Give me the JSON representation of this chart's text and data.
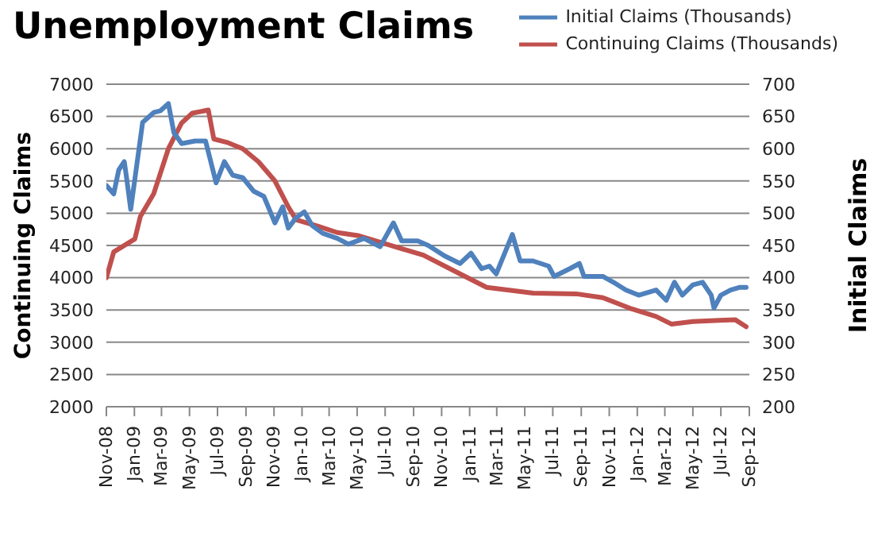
{
  "chart_data": {
    "type": "line",
    "title": "Unemployment Claims",
    "ylabel": "Continuing Claims",
    "y2label": "Initial Claims",
    "xlim": [
      "2008-11-01",
      "2012-09-01"
    ],
    "xticks": [
      {
        "value": "2008-11-01",
        "label": "Nov-08"
      },
      {
        "value": "2009-01-01",
        "label": "Jan-09"
      },
      {
        "value": "2009-03-01",
        "label": "Mar-09"
      },
      {
        "value": "2009-05-01",
        "label": "May-09"
      },
      {
        "value": "2009-07-01",
        "label": "Jul-09"
      },
      {
        "value": "2009-09-01",
        "label": "Sep-09"
      },
      {
        "value": "2009-11-01",
        "label": "Nov-09"
      },
      {
        "value": "2010-01-01",
        "label": "Jan-10"
      },
      {
        "value": "2010-03-01",
        "label": "Mar-10"
      },
      {
        "value": "2010-05-01",
        "label": "May-10"
      },
      {
        "value": "2010-07-01",
        "label": "Jul-10"
      },
      {
        "value": "2010-09-01",
        "label": "Sep-10"
      },
      {
        "value": "2010-11-01",
        "label": "Nov-10"
      },
      {
        "value": "2011-01-01",
        "label": "Jan-11"
      },
      {
        "value": "2011-03-01",
        "label": "Mar-11"
      },
      {
        "value": "2011-05-01",
        "label": "May-11"
      },
      {
        "value": "2011-07-01",
        "label": "Jul-11"
      },
      {
        "value": "2011-09-01",
        "label": "Sep-11"
      },
      {
        "value": "2011-11-01",
        "label": "Nov-11"
      },
      {
        "value": "2012-01-01",
        "label": "Jan-12"
      },
      {
        "value": "2012-03-01",
        "label": "Mar-12"
      },
      {
        "value": "2012-05-01",
        "label": "May-12"
      },
      {
        "value": "2012-07-01",
        "label": "Jul-12"
      },
      {
        "value": "2012-09-01",
        "label": "Sep-12"
      }
    ],
    "ylim": [
      2000,
      7000
    ],
    "yticks": [
      2000,
      2500,
      3000,
      3500,
      4000,
      4500,
      5000,
      5500,
      6000,
      6500,
      7000
    ],
    "y2lim": [
      200,
      700
    ],
    "y2ticks": [
      200,
      250,
      300,
      350,
      400,
      450,
      500,
      550,
      600,
      650,
      700
    ],
    "grid": "y",
    "legend": "top right",
    "marker": "none",
    "line_style": "solid",
    "series": [
      {
        "name": "Initial Claims (Thousands)",
        "color": "#4f81bd",
        "axis": "y2",
        "x": [
          "2008-11-01",
          "2008-11-17",
          "2008-11-28",
          "2008-12-10",
          "2008-12-15",
          "2008-12-24",
          "2009-01-08",
          "2009-01-19",
          "2009-02-12",
          "2009-02-27",
          "2009-03-16",
          "2009-03-28",
          "2009-04-14",
          "2009-05-13",
          "2009-06-05",
          "2009-06-28",
          "2009-07-16",
          "2009-08-03",
          "2009-08-25",
          "2009-09-18",
          "2009-10-10",
          "2009-11-03",
          "2009-11-20",
          "2009-12-02",
          "2009-12-19",
          "2010-01-06",
          "2010-01-23",
          "2010-02-15",
          "2010-03-19",
          "2010-04-12",
          "2010-05-16",
          "2010-06-20",
          "2010-07-19",
          "2010-08-06",
          "2010-09-10",
          "2010-10-03",
          "2010-11-07",
          "2010-12-11",
          "2011-01-04",
          "2011-01-27",
          "2011-02-13",
          "2011-02-28",
          "2011-04-04",
          "2011-04-21",
          "2011-05-19",
          "2011-06-22",
          "2011-07-04",
          "2011-08-07",
          "2011-08-28",
          "2011-09-07",
          "2011-10-18",
          "2011-11-10",
          "2011-12-07",
          "2012-01-04",
          "2012-02-11",
          "2012-03-04",
          "2012-03-22",
          "2012-04-08",
          "2012-05-01",
          "2012-05-22",
          "2012-06-10",
          "2012-06-16",
          "2012-07-01",
          "2012-07-22",
          "2012-08-10",
          "2012-08-25"
        ],
        "values": [
          543,
          530,
          567,
          580,
          555,
          506,
          584,
          641,
          656,
          659,
          670,
          625,
          608,
          612,
          612,
          547,
          580,
          559,
          555,
          534,
          526,
          485,
          510,
          477,
          493,
          502,
          481,
          469,
          461,
          452,
          461,
          448,
          485,
          457,
          457,
          450,
          434,
          422,
          438,
          414,
          418,
          406,
          467,
          426,
          426,
          418,
          402,
          414,
          422,
          402,
          402,
          393,
          381,
          373,
          381,
          365,
          393,
          373,
          389,
          393,
          373,
          353,
          373,
          381,
          385,
          385
        ]
      },
      {
        "name": "Continuing Claims (Thousands)",
        "color": "#c0504d",
        "x": [
          "2008-11-01",
          "2008-11-17",
          "2009-01-02",
          "2009-01-14",
          "2009-02-12",
          "2009-03-16",
          "2009-04-14",
          "2009-05-07",
          "2009-06-11",
          "2009-06-23",
          "2009-07-21",
          "2009-08-25",
          "2009-09-28",
          "2009-11-03",
          "2009-12-02",
          "2009-12-19",
          "2010-02-04",
          "2010-03-19",
          "2010-05-05",
          "2010-06-20",
          "2010-08-06",
          "2010-09-22",
          "2010-12-11",
          "2011-02-07",
          "2011-04-04",
          "2011-05-19",
          "2011-08-21",
          "2011-10-18",
          "2011-12-15",
          "2012-02-11",
          "2012-03-16",
          "2012-05-01",
          "2012-06-28",
          "2012-08-01",
          "2012-08-25"
        ],
        "values": [
          4000,
          4400,
          4600,
          4950,
          5300,
          6000,
          6400,
          6550,
          6600,
          6150,
          6100,
          6000,
          5800,
          5500,
          5100,
          4900,
          4800,
          4700,
          4650,
          4550,
          4450,
          4350,
          4060,
          3850,
          3800,
          3760,
          3750,
          3690,
          3530,
          3400,
          3280,
          3320,
          3340,
          3350,
          3240
        ]
      }
    ]
  }
}
